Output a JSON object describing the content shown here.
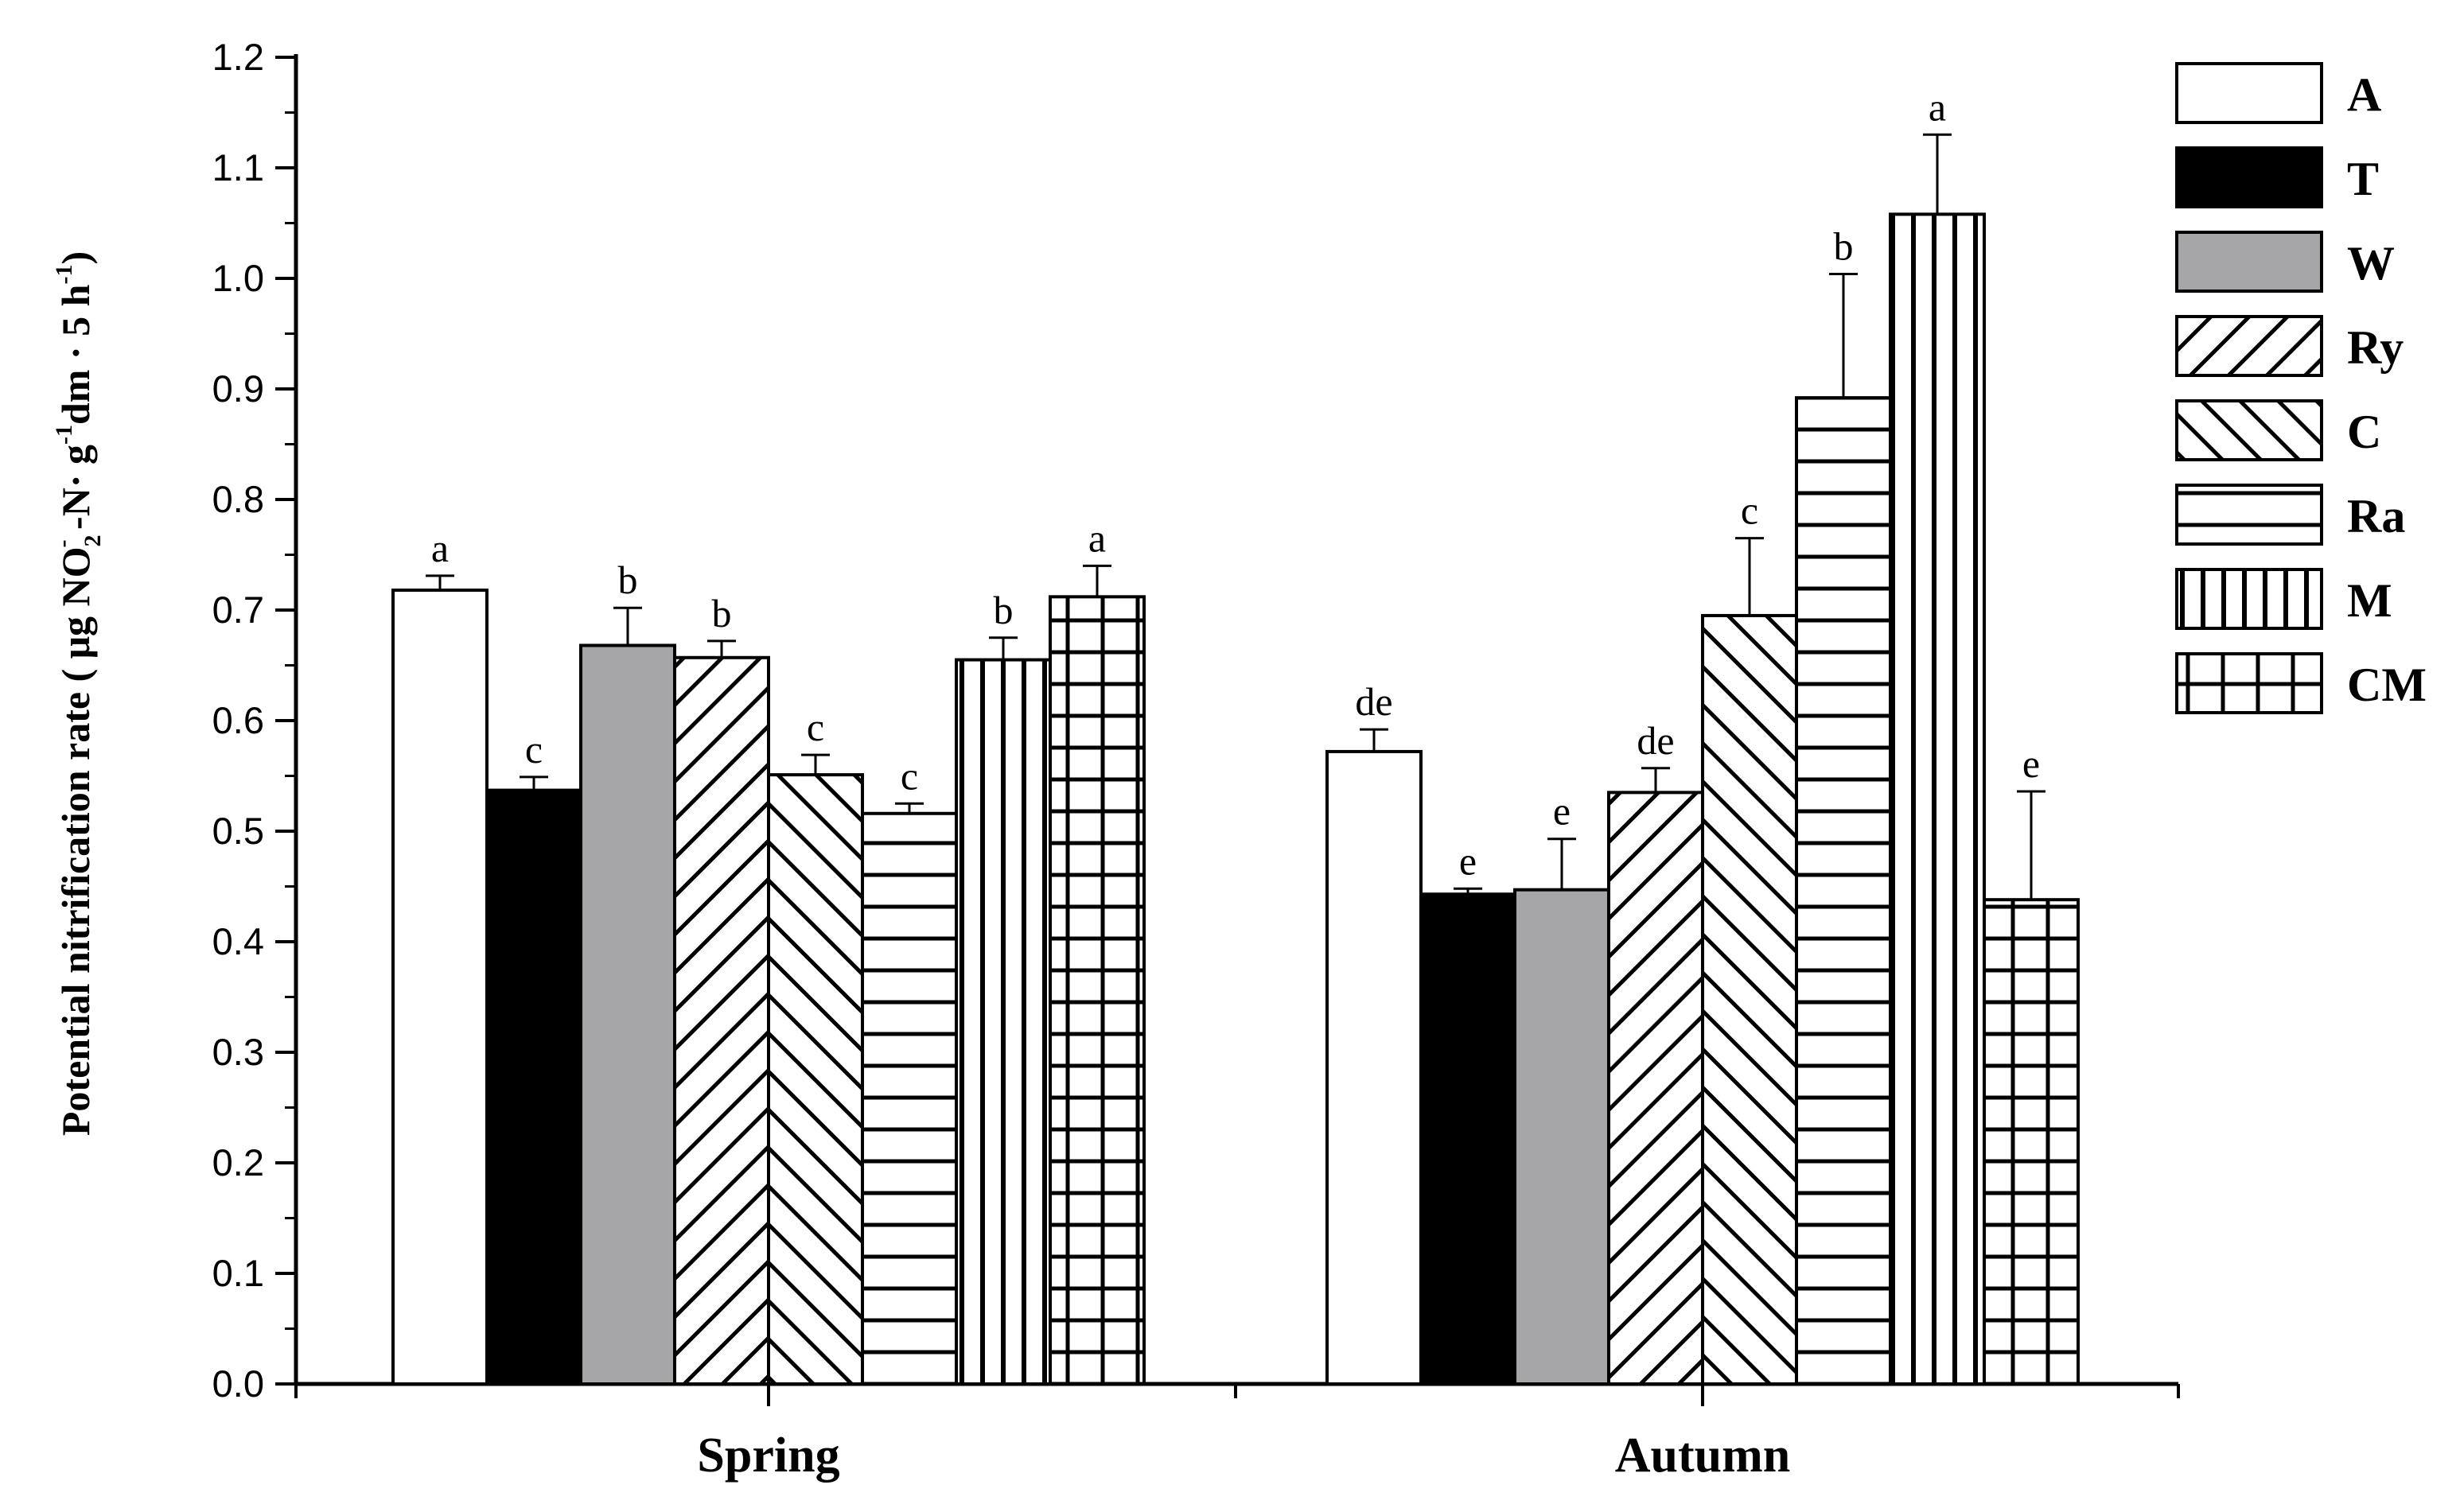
{
  "chart_data": {
    "type": "bar",
    "ylabel": {
      "main": "Potential nitrification rate",
      "unit_open": "( μg NO",
      "unit_sub": "2",
      "unit_sup": "-",
      "unit_mid": " -N· g",
      "unit_sup2": "-1",
      "unit_mid2": "dm · 5 h",
      "unit_sup3": "-1",
      "unit_close": ")"
    },
    "xlabel": "",
    "ylim": [
      0,
      1.2
    ],
    "yticks": [
      "0.0",
      "0.1",
      "0.2",
      "0.3",
      "0.4",
      "0.5",
      "0.6",
      "0.7",
      "0.8",
      "0.9",
      "1.0",
      "1.1",
      "1.2"
    ],
    "categories": [
      "Spring",
      "Autumn"
    ],
    "series": [
      {
        "name": "A",
        "pattern": "white",
        "values": [
          0.718,
          0.572
        ],
        "errors": [
          0.013,
          0.02
        ],
        "letters": [
          "a",
          "de"
        ]
      },
      {
        "name": "T",
        "pattern": "black",
        "values": [
          0.537,
          0.443
        ],
        "errors": [
          0.012,
          0.005
        ],
        "letters": [
          "c",
          "e"
        ]
      },
      {
        "name": "W",
        "pattern": "gray",
        "values": [
          0.668,
          0.447
        ],
        "errors": [
          0.034,
          0.046
        ],
        "letters": [
          "b",
          "e"
        ]
      },
      {
        "name": "Ry",
        "pattern": "diag-up",
        "values": [
          0.657,
          0.535
        ],
        "errors": [
          0.015,
          0.022
        ],
        "letters": [
          "b",
          "de"
        ]
      },
      {
        "name": "C",
        "pattern": "diag-down",
        "values": [
          0.551,
          0.695
        ],
        "errors": [
          0.018,
          0.07
        ],
        "letters": [
          "c",
          "c"
        ]
      },
      {
        "name": "Ra",
        "pattern": "horiz",
        "values": [
          0.516,
          0.892
        ],
        "errors": [
          0.009,
          0.112
        ],
        "letters": [
          "c",
          "b"
        ]
      },
      {
        "name": "M",
        "pattern": "vert",
        "values": [
          0.655,
          1.058
        ],
        "errors": [
          0.02,
          0.072
        ],
        "letters": [
          "b",
          "a"
        ]
      },
      {
        "name": "CM",
        "pattern": "grid",
        "values": [
          0.712,
          0.438
        ],
        "errors": [
          0.028,
          0.098
        ],
        "letters": [
          "a",
          "e"
        ]
      }
    ],
    "legend_position": "right"
  }
}
